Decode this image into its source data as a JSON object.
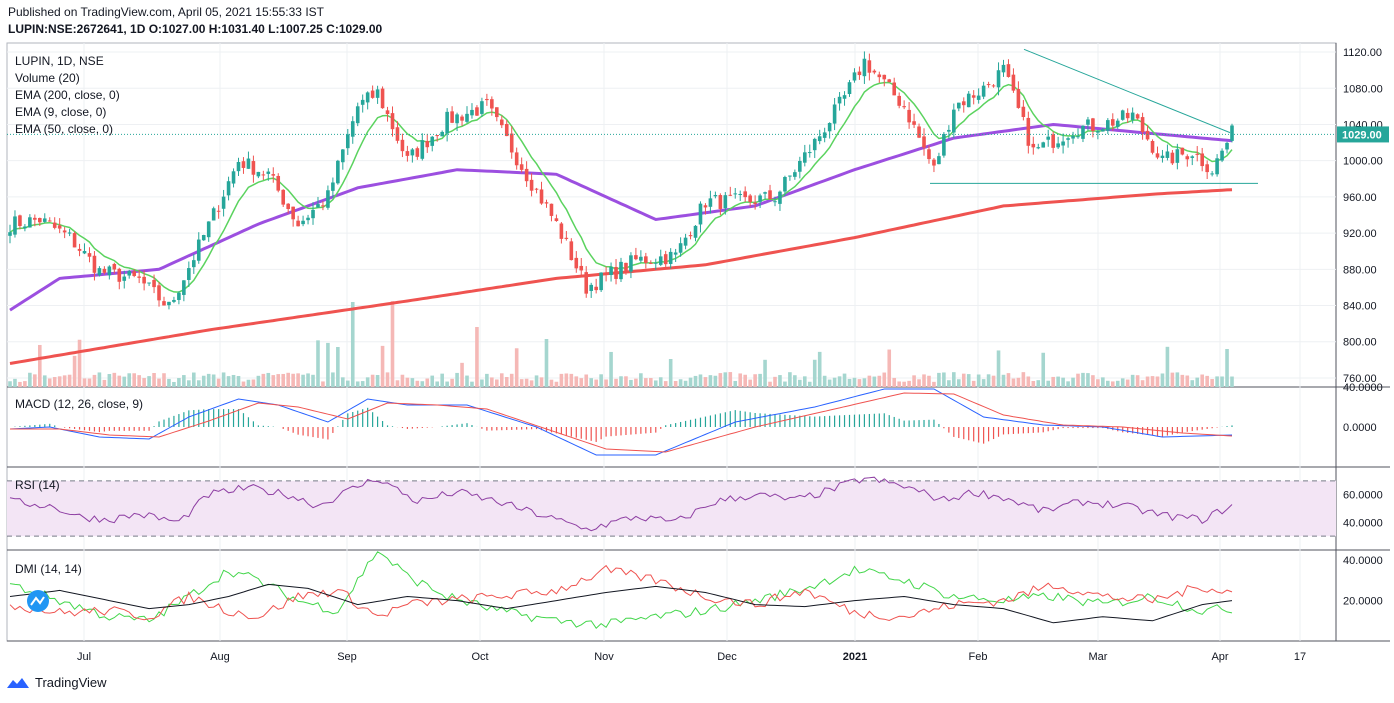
{
  "header": {
    "published": "Published on TradingView.com, April 05, 2021 15:55:33 IST",
    "ohlc": "LUPIN:NSE:2672641, 1D O:1027.00 H:1031.40 L:1007.25 C:1029.00"
  },
  "legend": {
    "symbol": "LUPIN, 1D, NSE",
    "volume": "Volume (20)",
    "ema200": "EMA (200, close, 0)",
    "ema9": "EMA (9, close, 0)",
    "ema50": "EMA (50, close, 0)"
  },
  "brand": "TradingView",
  "colors": {
    "up": "#26a69a",
    "down": "#ef5350",
    "ema9": "#5bd35f",
    "ema50": "#9c4fe0",
    "ema200": "#ef5350",
    "macd": "#2962ff",
    "signal": "#ef5350",
    "rsi": "#8e3fa3",
    "dmi_plus": "#43d64b",
    "dmi_minus": "#ef5350",
    "adx": "#131722",
    "trend": "#26a69a"
  },
  "chart_data": [
    {
      "type": "candlestick",
      "title": "LUPIN, 1D, NSE",
      "ylim": [
        750,
        1130
      ],
      "yticks": [
        "1120.00",
        "1080.00",
        "1040.00",
        "1000.00",
        "960.00",
        "920.00",
        "880.00",
        "840.00",
        "800.00",
        "760.00"
      ],
      "xticks": [
        "Jul",
        "Aug",
        "Sep",
        "Oct",
        "Nov",
        "Dec",
        "2021",
        "Feb",
        "Mar",
        "Apr",
        "17"
      ],
      "last_price": "1029.00",
      "anchors": [
        [
          0,
          930
        ],
        [
          6,
          935
        ],
        [
          12,
          915
        ],
        [
          18,
          878
        ],
        [
          26,
          868
        ],
        [
          32,
          838
        ],
        [
          38,
          905
        ],
        [
          46,
          1000
        ],
        [
          52,
          985
        ],
        [
          58,
          930
        ],
        [
          64,
          960
        ],
        [
          70,
          1060
        ],
        [
          74,
          1075
        ],
        [
          80,
          1000
        ],
        [
          88,
          1045
        ],
        [
          96,
          1060
        ],
        [
          104,
          985
        ],
        [
          110,
          930
        ],
        [
          116,
          860
        ],
        [
          126,
          890
        ],
        [
          134,
          895
        ],
        [
          140,
          955
        ],
        [
          148,
          955
        ],
        [
          154,
          960
        ],
        [
          162,
          1020
        ],
        [
          168,
          1070
        ],
        [
          172,
          1110
        ],
        [
          180,
          1060
        ],
        [
          186,
          990
        ],
        [
          190,
          1060
        ],
        [
          196,
          1080
        ],
        [
          200,
          1100
        ],
        [
          206,
          1010
        ],
        [
          214,
          1035
        ],
        [
          220,
          1040
        ],
        [
          226,
          1050
        ],
        [
          232,
          1000
        ],
        [
          238,
          1010
        ],
        [
          242,
          990
        ],
        [
          246,
          1030
        ]
      ],
      "ema200_anchors": [
        [
          0,
          776
        ],
        [
          40,
          813
        ],
        [
          80,
          845
        ],
        [
          110,
          870
        ],
        [
          140,
          885
        ],
        [
          170,
          915
        ],
        [
          200,
          950
        ],
        [
          230,
          963
        ],
        [
          246,
          968
        ]
      ],
      "ema50_anchors": [
        [
          0,
          835
        ],
        [
          10,
          870
        ],
        [
          30,
          880
        ],
        [
          50,
          930
        ],
        [
          70,
          970
        ],
        [
          90,
          990
        ],
        [
          110,
          985
        ],
        [
          130,
          935
        ],
        [
          150,
          950
        ],
        [
          170,
          990
        ],
        [
          190,
          1025
        ],
        [
          210,
          1040
        ],
        [
          230,
          1030
        ],
        [
          246,
          1022
        ]
      ],
      "trendline": [
        [
          1024,
          1123
        ],
        [
          1230,
          1031
        ]
      ],
      "support": 975,
      "volume_ylim": [
        0,
        10000000
      ]
    },
    {
      "type": "line",
      "title": "MACD (12, 26, close, 9)",
      "ylim": [
        -40,
        40
      ],
      "yticks": [
        "40.0000",
        "0.0000"
      ],
      "macd_anchors": [
        [
          0,
          -2
        ],
        [
          8,
          0
        ],
        [
          18,
          -10
        ],
        [
          28,
          -12
        ],
        [
          36,
          10
        ],
        [
          46,
          28
        ],
        [
          54,
          22
        ],
        [
          64,
          5
        ],
        [
          72,
          28
        ],
        [
          80,
          22
        ],
        [
          92,
          22
        ],
        [
          106,
          0
        ],
        [
          118,
          -28
        ],
        [
          130,
          -28
        ],
        [
          146,
          5
        ],
        [
          162,
          20
        ],
        [
          176,
          38
        ],
        [
          186,
          38
        ],
        [
          196,
          10
        ],
        [
          208,
          2
        ],
        [
          220,
          0
        ],
        [
          232,
          -10
        ],
        [
          246,
          -8
        ]
      ],
      "signal_anchors": [
        [
          0,
          -2
        ],
        [
          10,
          -2
        ],
        [
          20,
          -8
        ],
        [
          30,
          -10
        ],
        [
          40,
          6
        ],
        [
          50,
          24
        ],
        [
          58,
          20
        ],
        [
          68,
          8
        ],
        [
          76,
          24
        ],
        [
          86,
          22
        ],
        [
          96,
          18
        ],
        [
          108,
          -2
        ],
        [
          120,
          -22
        ],
        [
          132,
          -25
        ],
        [
          150,
          0
        ],
        [
          166,
          18
        ],
        [
          180,
          34
        ],
        [
          190,
          33
        ],
        [
          200,
          12
        ],
        [
          212,
          2
        ],
        [
          224,
          0
        ],
        [
          236,
          -6
        ],
        [
          246,
          -9
        ]
      ]
    },
    {
      "type": "line",
      "title": "RSI (14)",
      "ylim": [
        20,
        80
      ],
      "yticks": [
        "60.0000",
        "40.0000"
      ],
      "bands": [
        30,
        70
      ],
      "rsi_anchors": [
        [
          0,
          55
        ],
        [
          8,
          52
        ],
        [
          14,
          44
        ],
        [
          20,
          42
        ],
        [
          26,
          46
        ],
        [
          34,
          40
        ],
        [
          40,
          60
        ],
        [
          48,
          65
        ],
        [
          56,
          60
        ],
        [
          62,
          52
        ],
        [
          70,
          66
        ],
        [
          74,
          72
        ],
        [
          82,
          55
        ],
        [
          90,
          62
        ],
        [
          98,
          55
        ],
        [
          108,
          44
        ],
        [
          116,
          35
        ],
        [
          126,
          44
        ],
        [
          134,
          40
        ],
        [
          142,
          55
        ],
        [
          150,
          60
        ],
        [
          158,
          56
        ],
        [
          164,
          62
        ],
        [
          172,
          72
        ],
        [
          180,
          66
        ],
        [
          188,
          56
        ],
        [
          194,
          62
        ],
        [
          200,
          58
        ],
        [
          208,
          48
        ],
        [
          216,
          55
        ],
        [
          224,
          52
        ],
        [
          232,
          45
        ],
        [
          240,
          42
        ],
        [
          246,
          52
        ]
      ]
    },
    {
      "type": "line",
      "title": "DMI (14, 14)",
      "ylim": [
        0,
        45
      ],
      "yticks": [
        "40.0000",
        "20.0000"
      ],
      "plus_anchors": [
        [
          0,
          28
        ],
        [
          10,
          20
        ],
        [
          20,
          12
        ],
        [
          28,
          10
        ],
        [
          36,
          22
        ],
        [
          44,
          35
        ],
        [
          50,
          30
        ],
        [
          58,
          20
        ],
        [
          66,
          15
        ],
        [
          74,
          45
        ],
        [
          80,
          32
        ],
        [
          88,
          22
        ],
        [
          98,
          15
        ],
        [
          110,
          10
        ],
        [
          120,
          8
        ],
        [
          130,
          12
        ],
        [
          140,
          15
        ],
        [
          150,
          20
        ],
        [
          160,
          26
        ],
        [
          170,
          35
        ],
        [
          180,
          30
        ],
        [
          190,
          22
        ],
        [
          200,
          20
        ],
        [
          210,
          22
        ],
        [
          220,
          18
        ],
        [
          230,
          22
        ],
        [
          240,
          15
        ],
        [
          246,
          16
        ]
      ],
      "minus_anchors": [
        [
          0,
          18
        ],
        [
          10,
          14
        ],
        [
          20,
          15
        ],
        [
          28,
          12
        ],
        [
          36,
          22
        ],
        [
          44,
          15
        ],
        [
          50,
          12
        ],
        [
          58,
          22
        ],
        [
          66,
          25
        ],
        [
          74,
          12
        ],
        [
          80,
          18
        ],
        [
          88,
          20
        ],
        [
          98,
          22
        ],
        [
          110,
          25
        ],
        [
          120,
          35
        ],
        [
          130,
          30
        ],
        [
          140,
          22
        ],
        [
          150,
          18
        ],
        [
          160,
          25
        ],
        [
          170,
          14
        ],
        [
          180,
          12
        ],
        [
          190,
          18
        ],
        [
          200,
          20
        ],
        [
          210,
          28
        ],
        [
          220,
          22
        ],
        [
          230,
          20
        ],
        [
          240,
          27
        ],
        [
          246,
          24
        ]
      ],
      "adx_anchors": [
        [
          0,
          22
        ],
        [
          10,
          25
        ],
        [
          20,
          20
        ],
        [
          28,
          16
        ],
        [
          36,
          18
        ],
        [
          44,
          22
        ],
        [
          52,
          28
        ],
        [
          60,
          26
        ],
        [
          70,
          18
        ],
        [
          80,
          22
        ],
        [
          90,
          20
        ],
        [
          100,
          16
        ],
        [
          110,
          20
        ],
        [
          120,
          24
        ],
        [
          130,
          27
        ],
        [
          140,
          24
        ],
        [
          150,
          18
        ],
        [
          160,
          17
        ],
        [
          170,
          20
        ],
        [
          180,
          22
        ],
        [
          190,
          18
        ],
        [
          200,
          16
        ],
        [
          210,
          9
        ],
        [
          220,
          12
        ],
        [
          230,
          10
        ],
        [
          240,
          18
        ],
        [
          246,
          20
        ]
      ]
    }
  ]
}
